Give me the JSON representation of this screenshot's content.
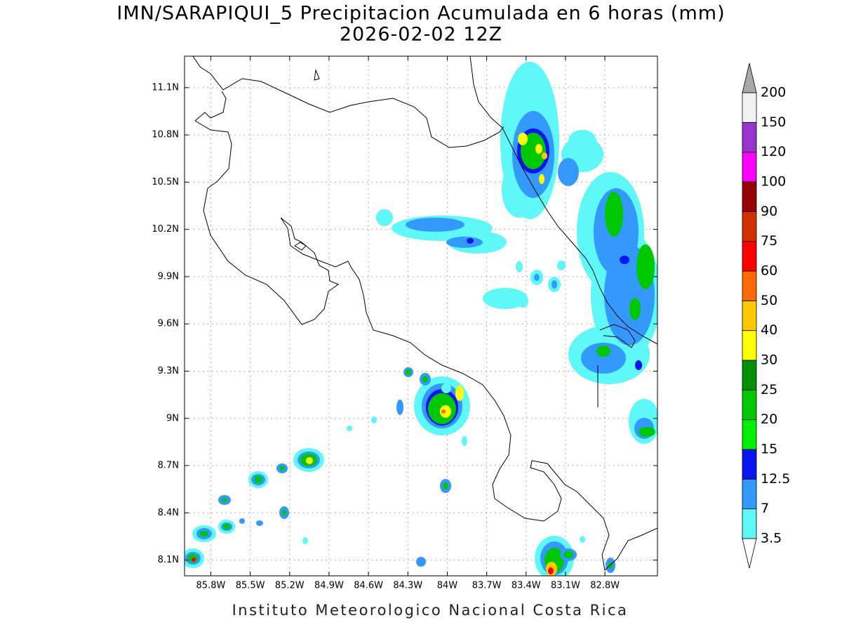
{
  "title": "IMN/SARAPIQUI_5 Precipitacion Acumulada en 6 horas (mm)",
  "subtitle": "2026-02-02 12Z",
  "map": {
    "xlim": [
      -86.0,
      -82.4
    ],
    "ylim": [
      8.0,
      11.3
    ],
    "xticks": [
      {
        "value": -85.8,
        "label": "85.8W"
      },
      {
        "value": -85.5,
        "label": "85.5W"
      },
      {
        "value": -85.2,
        "label": "85.2W"
      },
      {
        "value": -84.9,
        "label": "84.9W"
      },
      {
        "value": -84.6,
        "label": "84.6W"
      },
      {
        "value": -84.3,
        "label": "84.3W"
      },
      {
        "value": -84.0,
        "label": "84W"
      },
      {
        "value": -83.7,
        "label": "83.7W"
      },
      {
        "value": -83.4,
        "label": "83.4W"
      },
      {
        "value": -83.1,
        "label": "83.1W"
      },
      {
        "value": -82.8,
        "label": "82.8W"
      }
    ],
    "yticks": [
      {
        "value": 8.1,
        "label": "8.1N"
      },
      {
        "value": 8.4,
        "label": "8.4N"
      },
      {
        "value": 8.7,
        "label": "8.7N"
      },
      {
        "value": 9.0,
        "label": "9N"
      },
      {
        "value": 9.3,
        "label": "9.3N"
      },
      {
        "value": 9.6,
        "label": "9.6N"
      },
      {
        "value": 9.9,
        "label": "9.9N"
      },
      {
        "value": 10.2,
        "label": "10.2N"
      },
      {
        "value": 10.5,
        "label": "10.5N"
      },
      {
        "value": 10.8,
        "label": "10.8N"
      },
      {
        "value": 11.1,
        "label": "11.1N"
      }
    ],
    "grid": true
  },
  "colorbar": {
    "levels": [
      3.5,
      7,
      12.5,
      15,
      20,
      25,
      30,
      40,
      50,
      60,
      75,
      90,
      100,
      120,
      150,
      200
    ],
    "colors": [
      "#5ef8f8",
      "#3399ff",
      "#0a14f0",
      "#00f000",
      "#00c800",
      "#009000",
      "#ffff00",
      "#ffc800",
      "#ff6a00",
      "#ff0000",
      "#d23200",
      "#960000",
      "#ff00ff",
      "#9933cc",
      "#f2f2f2"
    ],
    "under_color": "#ffffff",
    "over_color": "#a8a8a8"
  },
  "footer": "Instituto Meteorologico Nacional Costa Rica"
}
